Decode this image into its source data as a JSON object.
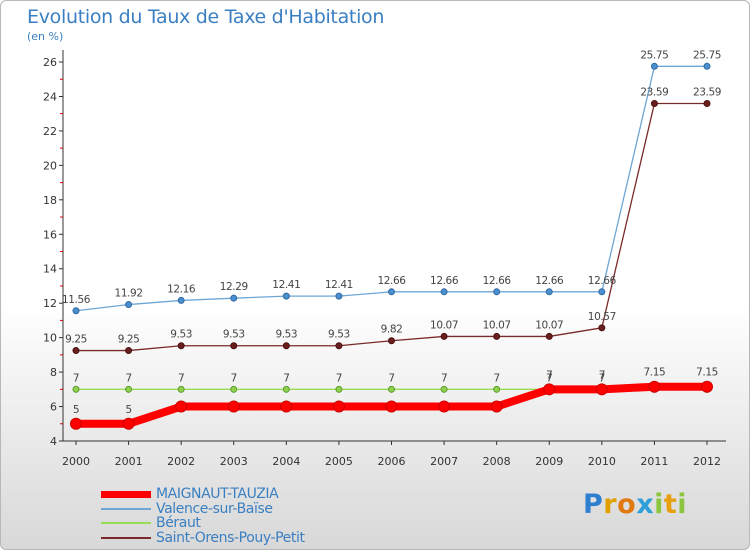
{
  "chart_data": {
    "type": "line",
    "title": "Evolution du Taux de Taxe d'Habitation",
    "subtitle": "(en %)",
    "x": [
      "2000",
      "2001",
      "2002",
      "2003",
      "2004",
      "2005",
      "2006",
      "2007",
      "2008",
      "2009",
      "2010",
      "2011",
      "2012"
    ],
    "ylim": [
      4,
      26
    ],
    "yticks": [
      4,
      6,
      8,
      10,
      12,
      14,
      16,
      18,
      20,
      22,
      24,
      26
    ],
    "grid": false,
    "legend_position": "bottom-left",
    "series": [
      {
        "name": "MAIGNAUT-TAUZIA",
        "color": "#ff0000",
        "values": [
          5,
          5,
          6,
          6,
          6,
          6,
          6,
          6,
          6,
          7,
          7,
          7.15,
          7.15
        ],
        "labels": [
          "5",
          "5",
          "",
          "",
          "",
          "",
          "",
          "",
          "",
          "7",
          "7",
          "7.15",
          "7.15"
        ]
      },
      {
        "name": "Valence-sur-Baïse",
        "color": "#6ea6d6",
        "values": [
          11.56,
          11.92,
          12.16,
          12.29,
          12.41,
          12.41,
          12.66,
          12.66,
          12.66,
          12.66,
          12.66,
          25.75,
          25.75
        ],
        "labels": [
          "11.56",
          "11.92",
          "12.16",
          "12.29",
          "12.41",
          "12.41",
          "12.66",
          "12.66",
          "12.66",
          "12.66",
          "12.66",
          "25.75",
          "25.75"
        ]
      },
      {
        "name": "Béraut",
        "color": "#99dd55",
        "values": [
          7,
          7,
          7,
          7,
          7,
          7,
          7,
          7,
          7,
          7,
          7,
          7,
          7
        ],
        "labels": [
          "7",
          "7",
          "7",
          "7",
          "7",
          "7",
          "7",
          "7",
          "7",
          "7",
          "7",
          "",
          ""
        ]
      },
      {
        "name": "Saint-Orens-Pouy-Petit",
        "color": "#7a2a2a",
        "values": [
          9.25,
          9.25,
          9.53,
          9.53,
          9.53,
          9.53,
          9.82,
          10.07,
          10.07,
          10.07,
          10.57,
          23.59,
          23.59
        ],
        "labels": [
          "9.25",
          "9.25",
          "9.53",
          "9.53",
          "9.53",
          "9.53",
          "9.82",
          "10.07",
          "10.07",
          "10.07",
          "10.57",
          "23.59",
          "23.59"
        ]
      }
    ]
  },
  "brand": {
    "letters": [
      "P",
      "r",
      "o",
      "x",
      "i",
      "t",
      "i"
    ],
    "colors": [
      "#2e7fd0",
      "#e2a000",
      "#e07a10",
      "#2e9fd8",
      "#8cc63f",
      "#e8a010",
      "#8cc63f"
    ]
  }
}
